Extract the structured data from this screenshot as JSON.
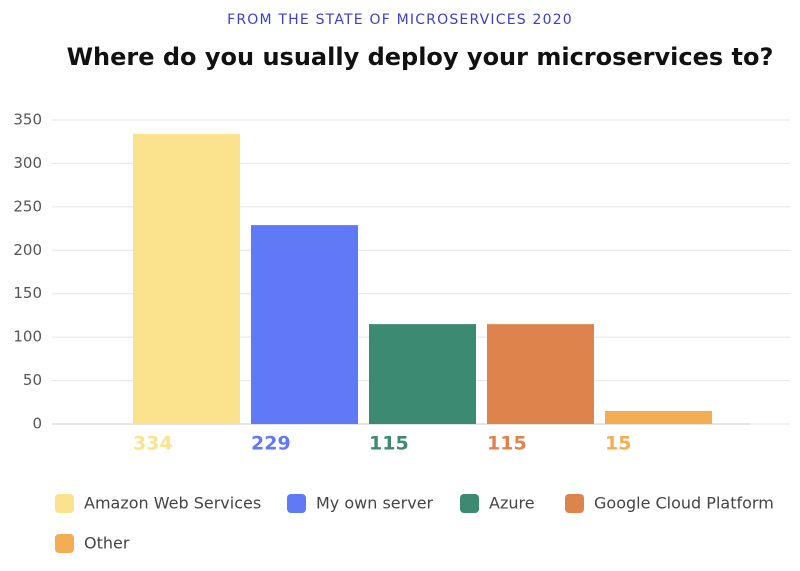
{
  "chart_data": {
    "type": "bar",
    "subtitle": "FROM THE STATE OF MICROSERVICES 2020",
    "title": "Where do you usually deploy your microservices to?",
    "categories": [
      "Amazon Web Services",
      "My own server",
      "Azure",
      "Google Cloud Platform",
      "Other"
    ],
    "values": [
      334,
      229,
      115,
      115,
      15
    ],
    "colors": [
      "#fbe38e",
      "#6079f6",
      "#3d8a72",
      "#dc844b",
      "#f3ad52"
    ],
    "ylim": [
      0,
      350
    ],
    "yticks": [
      0,
      50,
      100,
      150,
      200,
      250,
      300,
      350
    ],
    "grid": true
  }
}
